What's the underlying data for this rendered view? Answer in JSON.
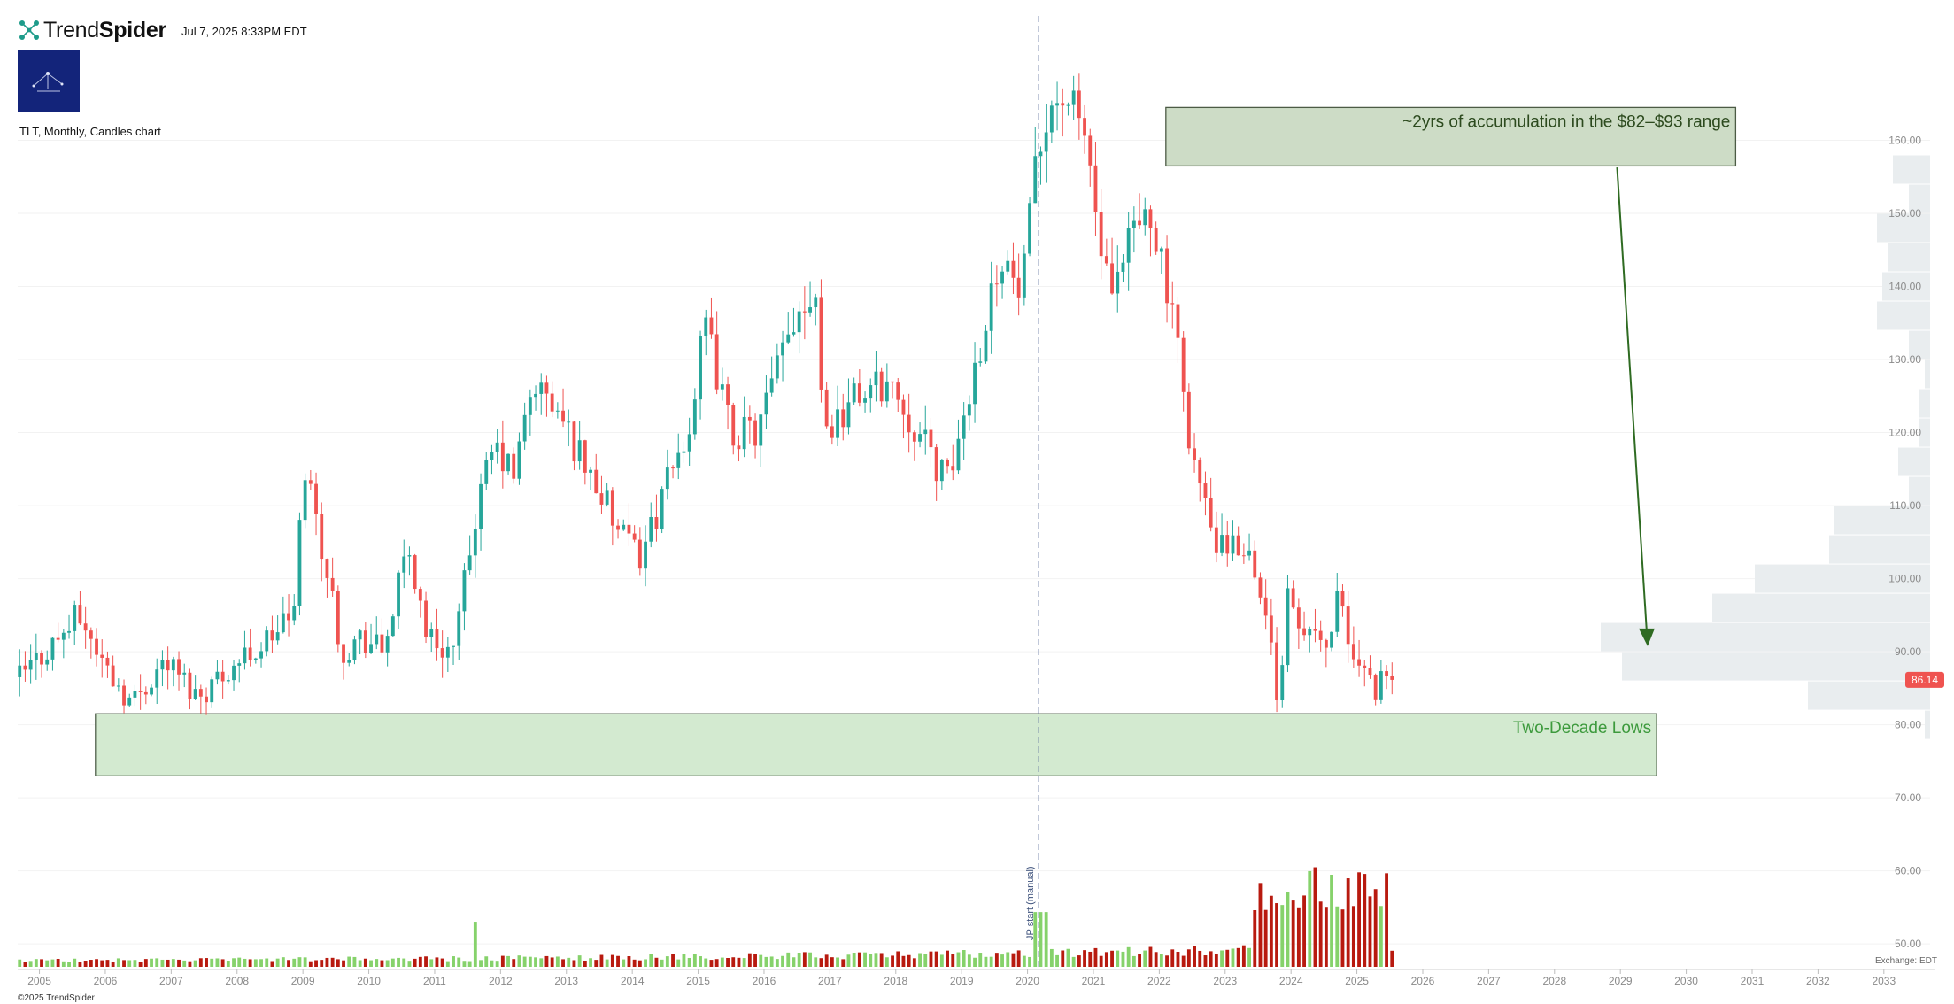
{
  "header": {
    "brand_light": "Trend",
    "brand_bold": "Spider",
    "timestamp": "Jul 7, 2025 8:33PM EDT",
    "description": "TLT, Monthly, Candles chart",
    "copyright": "©2025 TrendSpider",
    "exchange": "Exchange: EDT"
  },
  "icons": {
    "brand": "network-nodes-icon",
    "avatar": "profile-logo-icon"
  },
  "colors": {
    "up": "#26a69a",
    "down": "#ef5350",
    "vol_up": "#86d26b",
    "vol_down": "#b81a0f",
    "profile": "#e9edef",
    "accumulation_box": "#cddcc6",
    "low_box": "#d3ead0",
    "arrow": "#2f6b22",
    "low_text": "#3d9a3d",
    "price_tag": "#ef5350",
    "vline": "#5b6e9a"
  },
  "chart_data": {
    "type": "candlestick",
    "symbol": "TLT",
    "interval": "Monthly",
    "x_ticks": [
      "2005",
      "2006",
      "2007",
      "2008",
      "2009",
      "2010",
      "2011",
      "2012",
      "2013",
      "2014",
      "2015",
      "2016",
      "2017",
      "2018",
      "2019",
      "2020",
      "2021",
      "2022",
      "2023",
      "2024",
      "2025",
      "2026",
      "2027",
      "2028",
      "2029",
      "2030",
      "2031",
      "2032",
      "2033"
    ],
    "y_ticks": [
      "50.00",
      "60.00",
      "70.00",
      "80.00",
      "90.00",
      "100.00",
      "110.00",
      "120.00",
      "130.00",
      "140.00",
      "150.00",
      "160.00"
    ],
    "ylim": [
      46.5,
      178
    ],
    "xlim": [
      2004.67,
      2033.5
    ],
    "last_price": "86.14",
    "price_path": [
      [
        2004.7,
        86.5
      ],
      [
        2005.4,
        93
      ],
      [
        2005.6,
        95
      ],
      [
        2006.0,
        88
      ],
      [
        2006.4,
        83
      ],
      [
        2006.9,
        89
      ],
      [
        2007.4,
        84
      ],
      [
        2007.9,
        88
      ],
      [
        2008.4,
        91
      ],
      [
        2008.9,
        96
      ],
      [
        2009.0,
        117
      ],
      [
        2009.3,
        104
      ],
      [
        2009.6,
        90
      ],
      [
        2009.9,
        92
      ],
      [
        2010.2,
        90
      ],
      [
        2010.6,
        104
      ],
      [
        2010.9,
        92
      ],
      [
        2011.3,
        90
      ],
      [
        2011.6,
        108
      ],
      [
        2011.9,
        118
      ],
      [
        2012.2,
        114
      ],
      [
        2012.5,
        127
      ],
      [
        2012.9,
        122
      ],
      [
        2013.4,
        114
      ],
      [
        2013.8,
        106
      ],
      [
        2014.1,
        103
      ],
      [
        2014.5,
        112
      ],
      [
        2014.9,
        122
      ],
      [
        2015.1,
        135
      ],
      [
        2015.5,
        120
      ],
      [
        2015.9,
        120
      ],
      [
        2016.5,
        137
      ],
      [
        2016.8,
        140
      ],
      [
        2016.9,
        120
      ],
      [
        2017.4,
        125
      ],
      [
        2017.9,
        127
      ],
      [
        2018.4,
        119
      ],
      [
        2018.8,
        113
      ],
      [
        2019.0,
        121
      ],
      [
        2019.6,
        145
      ],
      [
        2019.9,
        138
      ],
      [
        2020.1,
        154
      ],
      [
        2020.3,
        165
      ],
      [
        2020.6,
        166
      ],
      [
        2020.9,
        160
      ],
      [
        2021.1,
        145
      ],
      [
        2021.3,
        137
      ],
      [
        2021.6,
        148
      ],
      [
        2021.9,
        150
      ],
      [
        2022.1,
        140
      ],
      [
        2022.3,
        130
      ],
      [
        2022.5,
        117
      ],
      [
        2022.8,
        106
      ],
      [
        2023.0,
        103
      ],
      [
        2023.3,
        105
      ],
      [
        2023.5,
        100
      ],
      [
        2023.8,
        84
      ],
      [
        2023.95,
        97
      ],
      [
        2024.2,
        94
      ],
      [
        2024.5,
        90
      ],
      [
        2024.7,
        97
      ],
      [
        2024.9,
        90
      ],
      [
        2025.1,
        87
      ],
      [
        2025.3,
        85
      ],
      [
        2025.5,
        86.14
      ]
    ],
    "volume_profile": [
      {
        "low": 154,
        "high": 158,
        "size": 0.07
      },
      {
        "low": 150,
        "high": 154,
        "size": 0.04
      },
      {
        "low": 146,
        "high": 150,
        "size": 0.1
      },
      {
        "low": 142,
        "high": 146,
        "size": 0.08
      },
      {
        "low": 138,
        "high": 142,
        "size": 0.09
      },
      {
        "low": 134,
        "high": 138,
        "size": 0.1
      },
      {
        "low": 130,
        "high": 134,
        "size": 0.04
      },
      {
        "low": 126,
        "high": 130,
        "size": 0.01
      },
      {
        "low": 122,
        "high": 126,
        "size": 0.02
      },
      {
        "low": 118,
        "high": 122,
        "size": 0.02
      },
      {
        "low": 114,
        "high": 118,
        "size": 0.06
      },
      {
        "low": 110,
        "high": 114,
        "size": 0.04
      },
      {
        "low": 106,
        "high": 110,
        "size": 0.18
      },
      {
        "low": 102,
        "high": 106,
        "size": 0.19
      },
      {
        "low": 98,
        "high": 102,
        "size": 0.33
      },
      {
        "low": 94,
        "high": 98,
        "size": 0.41
      },
      {
        "low": 90,
        "high": 94,
        "size": 0.62
      },
      {
        "low": 86,
        "high": 90,
        "size": 0.58
      },
      {
        "low": 82,
        "high": 86,
        "size": 0.23
      },
      {
        "low": 78,
        "high": 82,
        "size": 0.01
      }
    ],
    "annotations": {
      "accumulation": {
        "text": "~2yrs of accumulation in the $82–$93 range",
        "x0": 2022.1,
        "x1": 2030.75,
        "y0": 156.5,
        "y1": 164.5,
        "arrow_from": [
          2028.95,
          156.3
        ],
        "arrow_to": [
          2029.4,
          91
        ]
      },
      "lows": {
        "text": "Two-Decade Lows",
        "x0": 2005.85,
        "x1": 2029.55,
        "y0": 73,
        "y1": 81.5
      },
      "vertical_marker": {
        "text": "JP start (manual)",
        "x": 2020.17
      }
    }
  }
}
